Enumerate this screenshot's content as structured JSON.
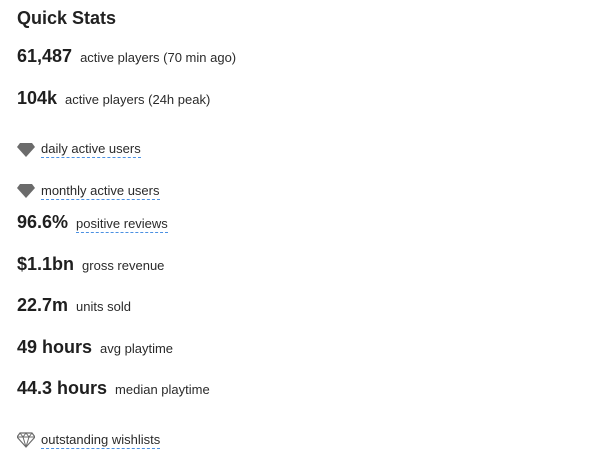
{
  "panel": {
    "title": "Quick Stats"
  },
  "stats": [
    {
      "value": "61,487",
      "label": "active players (70 min ago)"
    },
    {
      "value": "104k",
      "label": "active players (24h peak)"
    },
    {
      "icon": "filled-gem-icon",
      "label": "daily active users"
    },
    {
      "icon": "filled-gem-icon",
      "label": "monthly active users"
    },
    {
      "value": "96.6%",
      "label": "positive reviews"
    },
    {
      "value": "$1.1bn",
      "label": "gross revenue"
    },
    {
      "value": "22.7m",
      "label": "units sold"
    },
    {
      "value": "49 hours",
      "label": "avg playtime"
    },
    {
      "value": "44.3 hours",
      "label": "median playtime"
    },
    {
      "icon": "outline-gem-icon",
      "label": "outstanding wishlists"
    }
  ],
  "colors": {
    "link_underline": "#4a90e2",
    "gem_fill": "#6b6b6b",
    "text": "#1f1f1f"
  }
}
